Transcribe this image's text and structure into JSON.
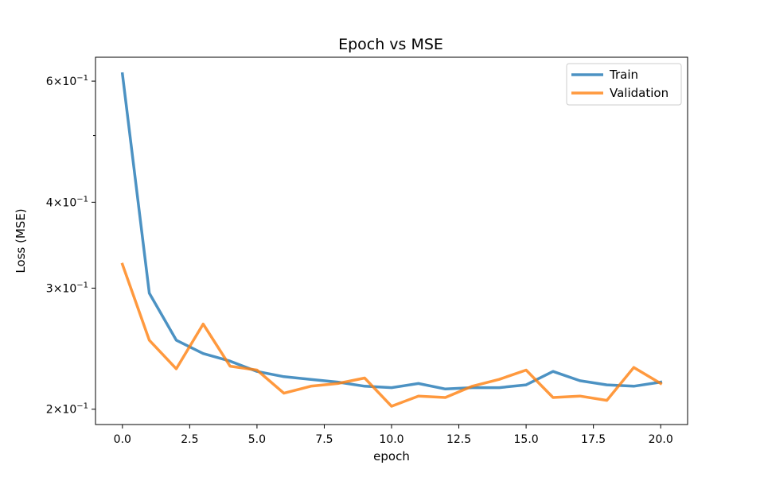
{
  "chart_data": {
    "type": "line",
    "title": "Epoch vs MSE",
    "xlabel": "epoch",
    "ylabel": "Loss (MSE)",
    "yscale": "log",
    "xlim": [
      -1,
      21
    ],
    "ylim": [
      0.19,
      0.65
    ],
    "xticks": [
      0,
      2.5,
      5,
      7.5,
      10,
      12.5,
      15,
      17.5,
      20
    ],
    "xtick_labels": [
      "0.0",
      "2.5",
      "5.0",
      "7.5",
      "10.0",
      "12.5",
      "15.0",
      "17.5",
      "20.0"
    ],
    "yticks": [
      {
        "value": 0.2,
        "mantissa": "2",
        "exponent": "−1"
      },
      {
        "value": 0.3,
        "mantissa": "3",
        "exponent": "−1"
      },
      {
        "value": 0.4,
        "mantissa": "4",
        "exponent": "−1"
      },
      {
        "value": 0.6,
        "mantissa": "6",
        "exponent": "−1"
      }
    ],
    "y_minor_ticks": [
      0.5
    ],
    "grid": false,
    "legend": {
      "position": "top-right"
    },
    "x": [
      0,
      1,
      2,
      3,
      4,
      5,
      6,
      7,
      8,
      9,
      10,
      11,
      12,
      13,
      14,
      15,
      16,
      17,
      18,
      19,
      20
    ],
    "series": [
      {
        "name": "Train",
        "color": "#1f77b4",
        "values": [
          0.615,
          0.295,
          0.252,
          0.241,
          0.235,
          0.227,
          0.223,
          0.221,
          0.219,
          0.216,
          0.215,
          0.218,
          0.214,
          0.215,
          0.215,
          0.217,
          0.227,
          0.22,
          0.217,
          0.216,
          0.219
        ]
      },
      {
        "name": "Validation",
        "color": "#ff7f0e",
        "values": [
          0.325,
          0.252,
          0.229,
          0.266,
          0.231,
          0.228,
          0.211,
          0.216,
          0.218,
          0.222,
          0.202,
          0.209,
          0.208,
          0.216,
          0.221,
          0.228,
          0.208,
          0.209,
          0.206,
          0.23,
          0.218
        ]
      }
    ]
  }
}
